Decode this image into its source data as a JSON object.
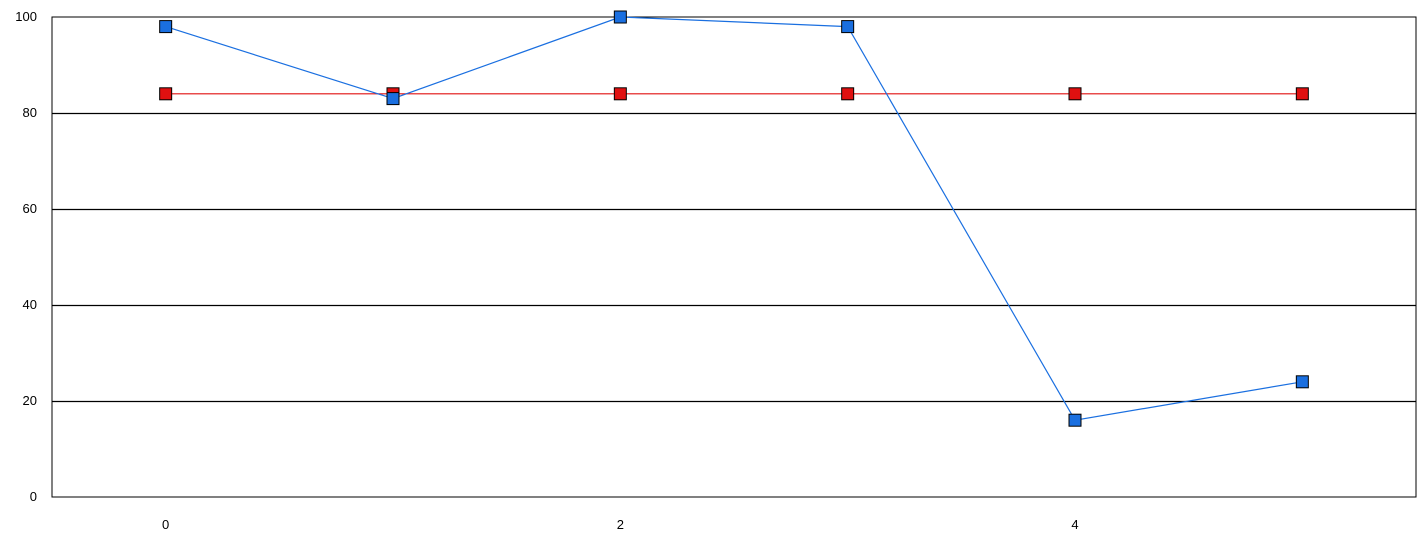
{
  "chart_data": {
    "type": "line",
    "title": "",
    "xlabel": "",
    "ylabel": "",
    "xlim": [
      -0.5,
      5.5
    ],
    "ylim": [
      0,
      100
    ],
    "xticks": [
      0,
      2,
      4
    ],
    "yticks": [
      0,
      20,
      40,
      60,
      80,
      100
    ],
    "grid": "horizontal",
    "legend": "none",
    "x": [
      0,
      1,
      2,
      3,
      4,
      5
    ],
    "series": [
      {
        "color": "#1a6fe0",
        "marker": "square",
        "values": [
          98,
          83,
          100,
          98,
          16,
          24
        ]
      },
      {
        "color": "#e01010",
        "marker": "square",
        "values": [
          84,
          84,
          84,
          84,
          84,
          84
        ]
      }
    ]
  }
}
